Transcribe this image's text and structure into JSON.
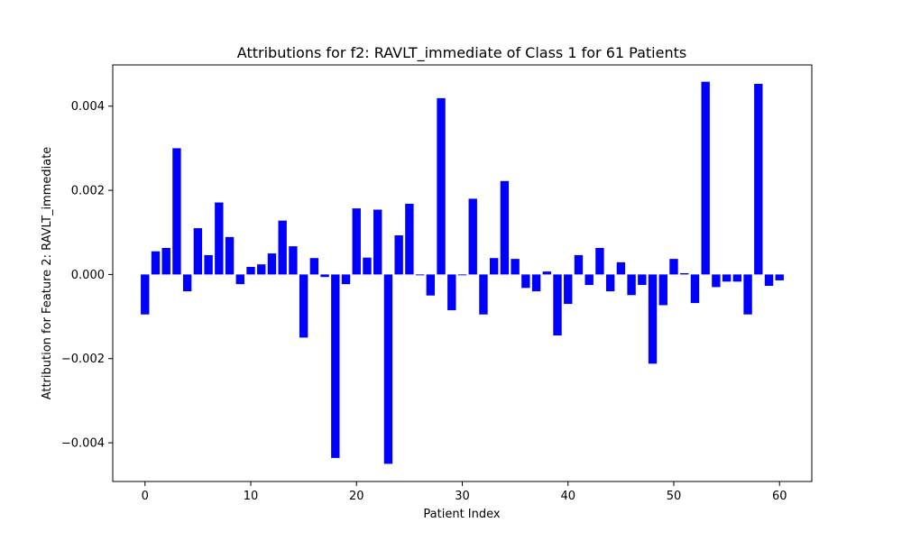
{
  "chart_data": {
    "type": "bar",
    "title": "Attributions for f2: RAVLT_immediate of Class 1 for 61 Patients",
    "xlabel": "Patient Index",
    "ylabel": "Attribution for Feature 2: RAVLT_immediate",
    "bar_color": "#0000ff",
    "xlim": [
      -3.05,
      63.05
    ],
    "ylim": [
      -0.00492,
      0.00498
    ],
    "xticks": [
      0,
      10,
      20,
      30,
      40,
      50,
      60
    ],
    "xtick_labels": [
      "0",
      "10",
      "20",
      "30",
      "40",
      "50",
      "60"
    ],
    "yticks": [
      -0.004,
      -0.002,
      0.0,
      0.002,
      0.004
    ],
    "ytick_labels": [
      "−0.004",
      "−0.002",
      "0.000",
      "0.002",
      "0.004"
    ],
    "grid": false,
    "legend": "none",
    "x": [
      0,
      1,
      2,
      3,
      4,
      5,
      6,
      7,
      8,
      9,
      10,
      11,
      12,
      13,
      14,
      15,
      16,
      17,
      18,
      19,
      20,
      21,
      22,
      23,
      24,
      25,
      26,
      27,
      28,
      29,
      30,
      31,
      32,
      33,
      34,
      35,
      36,
      37,
      38,
      39,
      40,
      41,
      42,
      43,
      44,
      45,
      46,
      47,
      48,
      49,
      50,
      51,
      52,
      53,
      54,
      55,
      56,
      57,
      58,
      59,
      60
    ],
    "values": [
      -0.00095,
      0.00055,
      0.00063,
      0.003,
      -0.0004,
      0.0011,
      0.00046,
      0.00171,
      0.00089,
      -0.00023,
      0.00018,
      0.00024,
      0.0005,
      0.00128,
      0.00067,
      -0.0015,
      0.00039,
      -6e-05,
      -0.00436,
      -0.00023,
      0.00157,
      0.0004,
      0.00154,
      -0.0045,
      0.00093,
      0.00168,
      -2e-05,
      -0.0005,
      0.00419,
      -0.00085,
      -2e-05,
      0.0018,
      -0.00095,
      0.00039,
      0.00222,
      0.00037,
      -0.00032,
      -0.0004,
      7e-05,
      -0.00145,
      -0.0007,
      0.00046,
      -0.00025,
      0.00063,
      -0.0004,
      0.00029,
      -0.00049,
      -0.00025,
      -0.00212,
      -0.00073,
      0.00037,
      3e-05,
      -0.00068,
      0.00458,
      -0.0003,
      -0.00017,
      -0.00017,
      -0.00095,
      0.00453,
      -0.00027,
      -0.00014
    ]
  }
}
